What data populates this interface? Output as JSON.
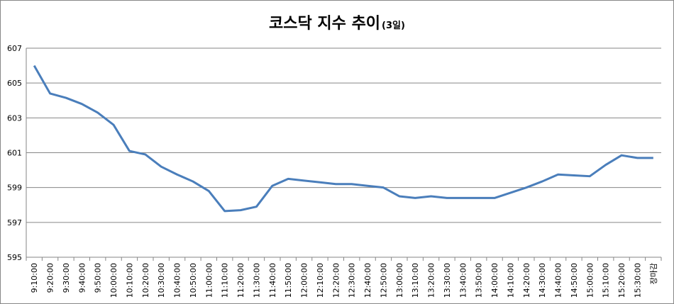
{
  "chart_data": {
    "type": "line",
    "title": "코스닥 지수 추이",
    "subtitle": "(3일)",
    "categories": [
      "9:10:00",
      "9:20:00",
      "9:30:00",
      "9:40:00",
      "9:50:00",
      "10:00:00",
      "10:10:00",
      "10:20:00",
      "10:30:00",
      "10:40:00",
      "10:50:00",
      "11:00:00",
      "11:10:00",
      "11:20:00",
      "11:30:00",
      "11:40:00",
      "11:50:00",
      "12:00:00",
      "12:10:00",
      "12:20:00",
      "12:30:00",
      "12:40:00",
      "12:50:00",
      "13:00:00",
      "13:10:00",
      "13:20:00",
      "13:30:00",
      "13:40:00",
      "13:50:00",
      "14:00:00",
      "14:10:00",
      "14:20:00",
      "14:30:00",
      "14:40:00",
      "14:50:00",
      "15:00:00",
      "15:10:00",
      "15:20:00",
      "15:30:00",
      "장마감"
    ],
    "values": [
      606.0,
      604.4,
      604.15,
      603.8,
      603.3,
      602.6,
      601.1,
      600.9,
      600.2,
      599.75,
      599.35,
      598.8,
      597.65,
      597.7,
      597.9,
      599.1,
      599.5,
      599.4,
      599.3,
      599.2,
      599.2,
      599.1,
      599.0,
      598.5,
      598.4,
      598.5,
      598.4,
      598.4,
      598.4,
      598.4,
      598.7,
      599.0,
      599.35,
      599.75,
      599.7,
      599.65,
      600.3,
      600.85,
      600.7,
      600.7
    ],
    "color": "#4a7ebb",
    "ylim": [
      595,
      607
    ],
    "yticks": [
      595,
      597,
      599,
      601,
      603,
      605,
      607
    ],
    "grid": true
  }
}
